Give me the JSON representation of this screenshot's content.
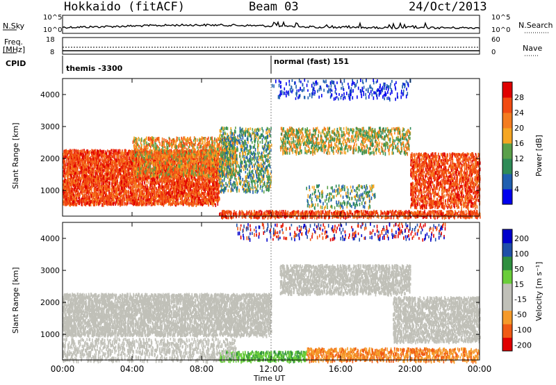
{
  "header": {
    "radar": "Hokkaido (fitACF)",
    "beam": "Beam 03",
    "date": "24/Oct/2013"
  },
  "sky_panel": {
    "left_label": "N.Sky",
    "right_label": "N.Search",
    "left_ticks": [
      "10^5",
      "10^0"
    ],
    "right_ticks": [
      "10^5",
      "10^0"
    ]
  },
  "freq_panel": {
    "left_label": "Freq.",
    "left_unit": "[MHz]",
    "left_ticks": [
      "18",
      "8"
    ],
    "right_label": "Nave",
    "right_ticks": [
      "60",
      "0"
    ]
  },
  "cpid_panel": {
    "label": "CPID",
    "modes": [
      "themis -3300",
      "normal (fast) 151"
    ]
  },
  "colors": {
    "power_scale": [
      "#0000ee",
      "#1f5fb0",
      "#2e8b57",
      "#5aa04a",
      "#f5a623",
      "#f47c20",
      "#f24b12",
      "#e00000"
    ],
    "velocity_scale": [
      "#e00000",
      "#f05a14",
      "#f59a2a",
      "#c0c0b8",
      "#c0c0b8",
      "#6acd3a",
      "#2f8f3f",
      "#1f4fa8",
      "#0000cc"
    ]
  },
  "chart_data": [
    {
      "type": "heatmap",
      "name": "power",
      "ylabel": "Slant Range [km]",
      "ylim": [
        200,
        4500
      ],
      "yticks": [
        1000,
        2000,
        3000,
        4000
      ],
      "xlim": [
        0,
        24
      ],
      "colorbar": {
        "label": "Power [dB]",
        "ticks": [
          4,
          8,
          12,
          16,
          20,
          24,
          28
        ],
        "range": [
          0,
          32
        ]
      }
    },
    {
      "type": "heatmap",
      "name": "velocity",
      "ylabel": "Slant Range [km]",
      "ylim": [
        200,
        4500
      ],
      "yticks": [
        1000,
        2000,
        3000,
        4000
      ],
      "xlim": [
        0,
        24
      ],
      "colorbar": {
        "label": "Velocity [m s⁻¹]",
        "ticks": [
          200,
          100,
          50,
          15,
          -15,
          -50,
          -100,
          -200
        ]
      }
    }
  ],
  "x_axis": {
    "label": "Time UT",
    "ticks": [
      "00:00",
      "04:00",
      "08:00",
      "12:00",
      "16:00",
      "20:00",
      "00:00"
    ]
  }
}
